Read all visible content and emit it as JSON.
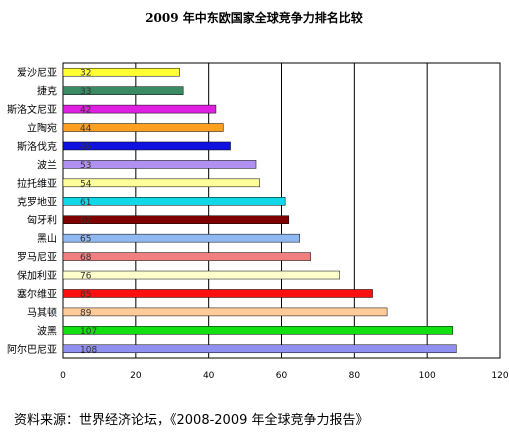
{
  "chart_data": {
    "type": "bar",
    "orientation": "horizontal",
    "title": "2009 年中东欧国家全球竞争力排名比较",
    "categories": [
      "爱沙尼亚",
      "捷克",
      "斯洛文尼亚",
      "立陶宛",
      "斯洛伐克",
      "波兰",
      "拉托维亚",
      "克罗地亚",
      "匈牙利",
      "黑山",
      "罗马尼亚",
      "保加利亚",
      "塞尔维亚",
      "马其顿",
      "波黑",
      "阿尔巴尼亚"
    ],
    "values": [
      32,
      33,
      42,
      44,
      46,
      53,
      54,
      61,
      62,
      65,
      68,
      76,
      85,
      89,
      107,
      108
    ],
    "bar_colors": [
      "#ffff33",
      "#3a8a64",
      "#e020e0",
      "#ffa020",
      "#1010e0",
      "#b090f0",
      "#ffff99",
      "#10d8e8",
      "#800000",
      "#90b8f0",
      "#f08080",
      "#ffffcc",
      "#ff1010",
      "#ffcc99",
      "#10e010",
      "#9090f0"
    ],
    "data_labels": [
      "32",
      "33",
      "42",
      "44",
      "46",
      "53",
      "54",
      "61",
      "62",
      "65",
      "68",
      "76",
      "85",
      "89",
      "107",
      "108"
    ],
    "x_ticks": [
      "0",
      "20",
      "40",
      "60",
      "80",
      "100",
      "120"
    ],
    "xlim": [
      0,
      120
    ],
    "grid": "vertical",
    "legend": "none"
  },
  "source_note": "资料来源：世界经济论坛，《2008-2009 年全球竞争力报告》"
}
